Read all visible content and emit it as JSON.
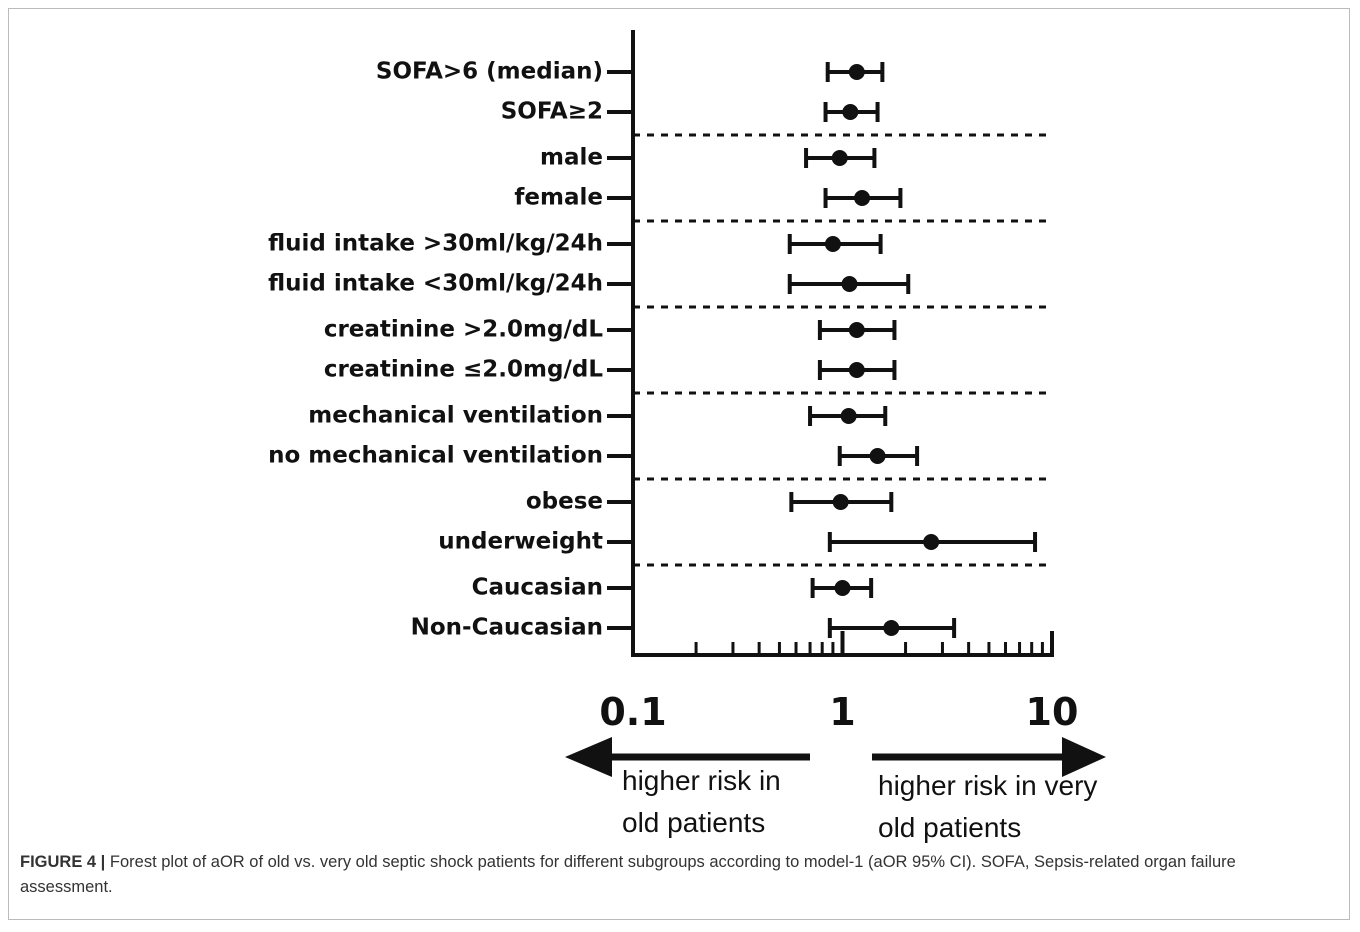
{
  "chart_data": {
    "type": "forest",
    "categories": [
      "SOFA>6 (median)",
      "SOFA≥2",
      "male",
      "female",
      "fluid intake >30ml/kg/24h",
      "fluid intake <30ml/kg/24h",
      "creatinine >2.0mg/dL",
      "creatinine ≤2.0mg/dL",
      "mechanical ventilation",
      "no mechanical ventilation",
      "obese",
      "underweight",
      "Caucasian",
      "Non-Caucasian"
    ],
    "values": [
      1.17,
      1.09,
      0.97,
      1.24,
      0.9,
      1.08,
      1.17,
      1.17,
      1.07,
      1.47,
      0.98,
      2.65,
      1.0,
      1.71
    ],
    "lower": [
      0.85,
      0.83,
      0.67,
      0.83,
      0.56,
      0.56,
      0.78,
      0.78,
      0.7,
      0.97,
      0.57,
      0.87,
      0.72,
      0.87
    ],
    "upper": [
      1.55,
      1.47,
      1.42,
      1.89,
      1.52,
      2.06,
      1.77,
      1.77,
      1.6,
      2.27,
      1.71,
      8.3,
      1.37,
      3.41
    ],
    "color": "#111111",
    "xscale": "log",
    "xlim": [
      0.1,
      10
    ],
    "xticks": [
      0.1,
      1,
      10
    ],
    "xminorticks": [
      0.2,
      0.3,
      0.4,
      0.5,
      0.6,
      0.7,
      0.8,
      0.9,
      2,
      3,
      4,
      5,
      6,
      7,
      8,
      9
    ],
    "annotations": [
      {
        "lines": [
          "higher risk in",
          "old patients"
        ]
      },
      {
        "lines": [
          "higher risk in very",
          "old patients"
        ]
      }
    ]
  },
  "caption": {
    "label": "FIGURE 4 |",
    "text": "Forest plot of aOR of old vs. very old septic shock patients for different subgroups according to model-1 (aOR 95% CI). SOFA, Sepsis-related organ failure assessment."
  }
}
